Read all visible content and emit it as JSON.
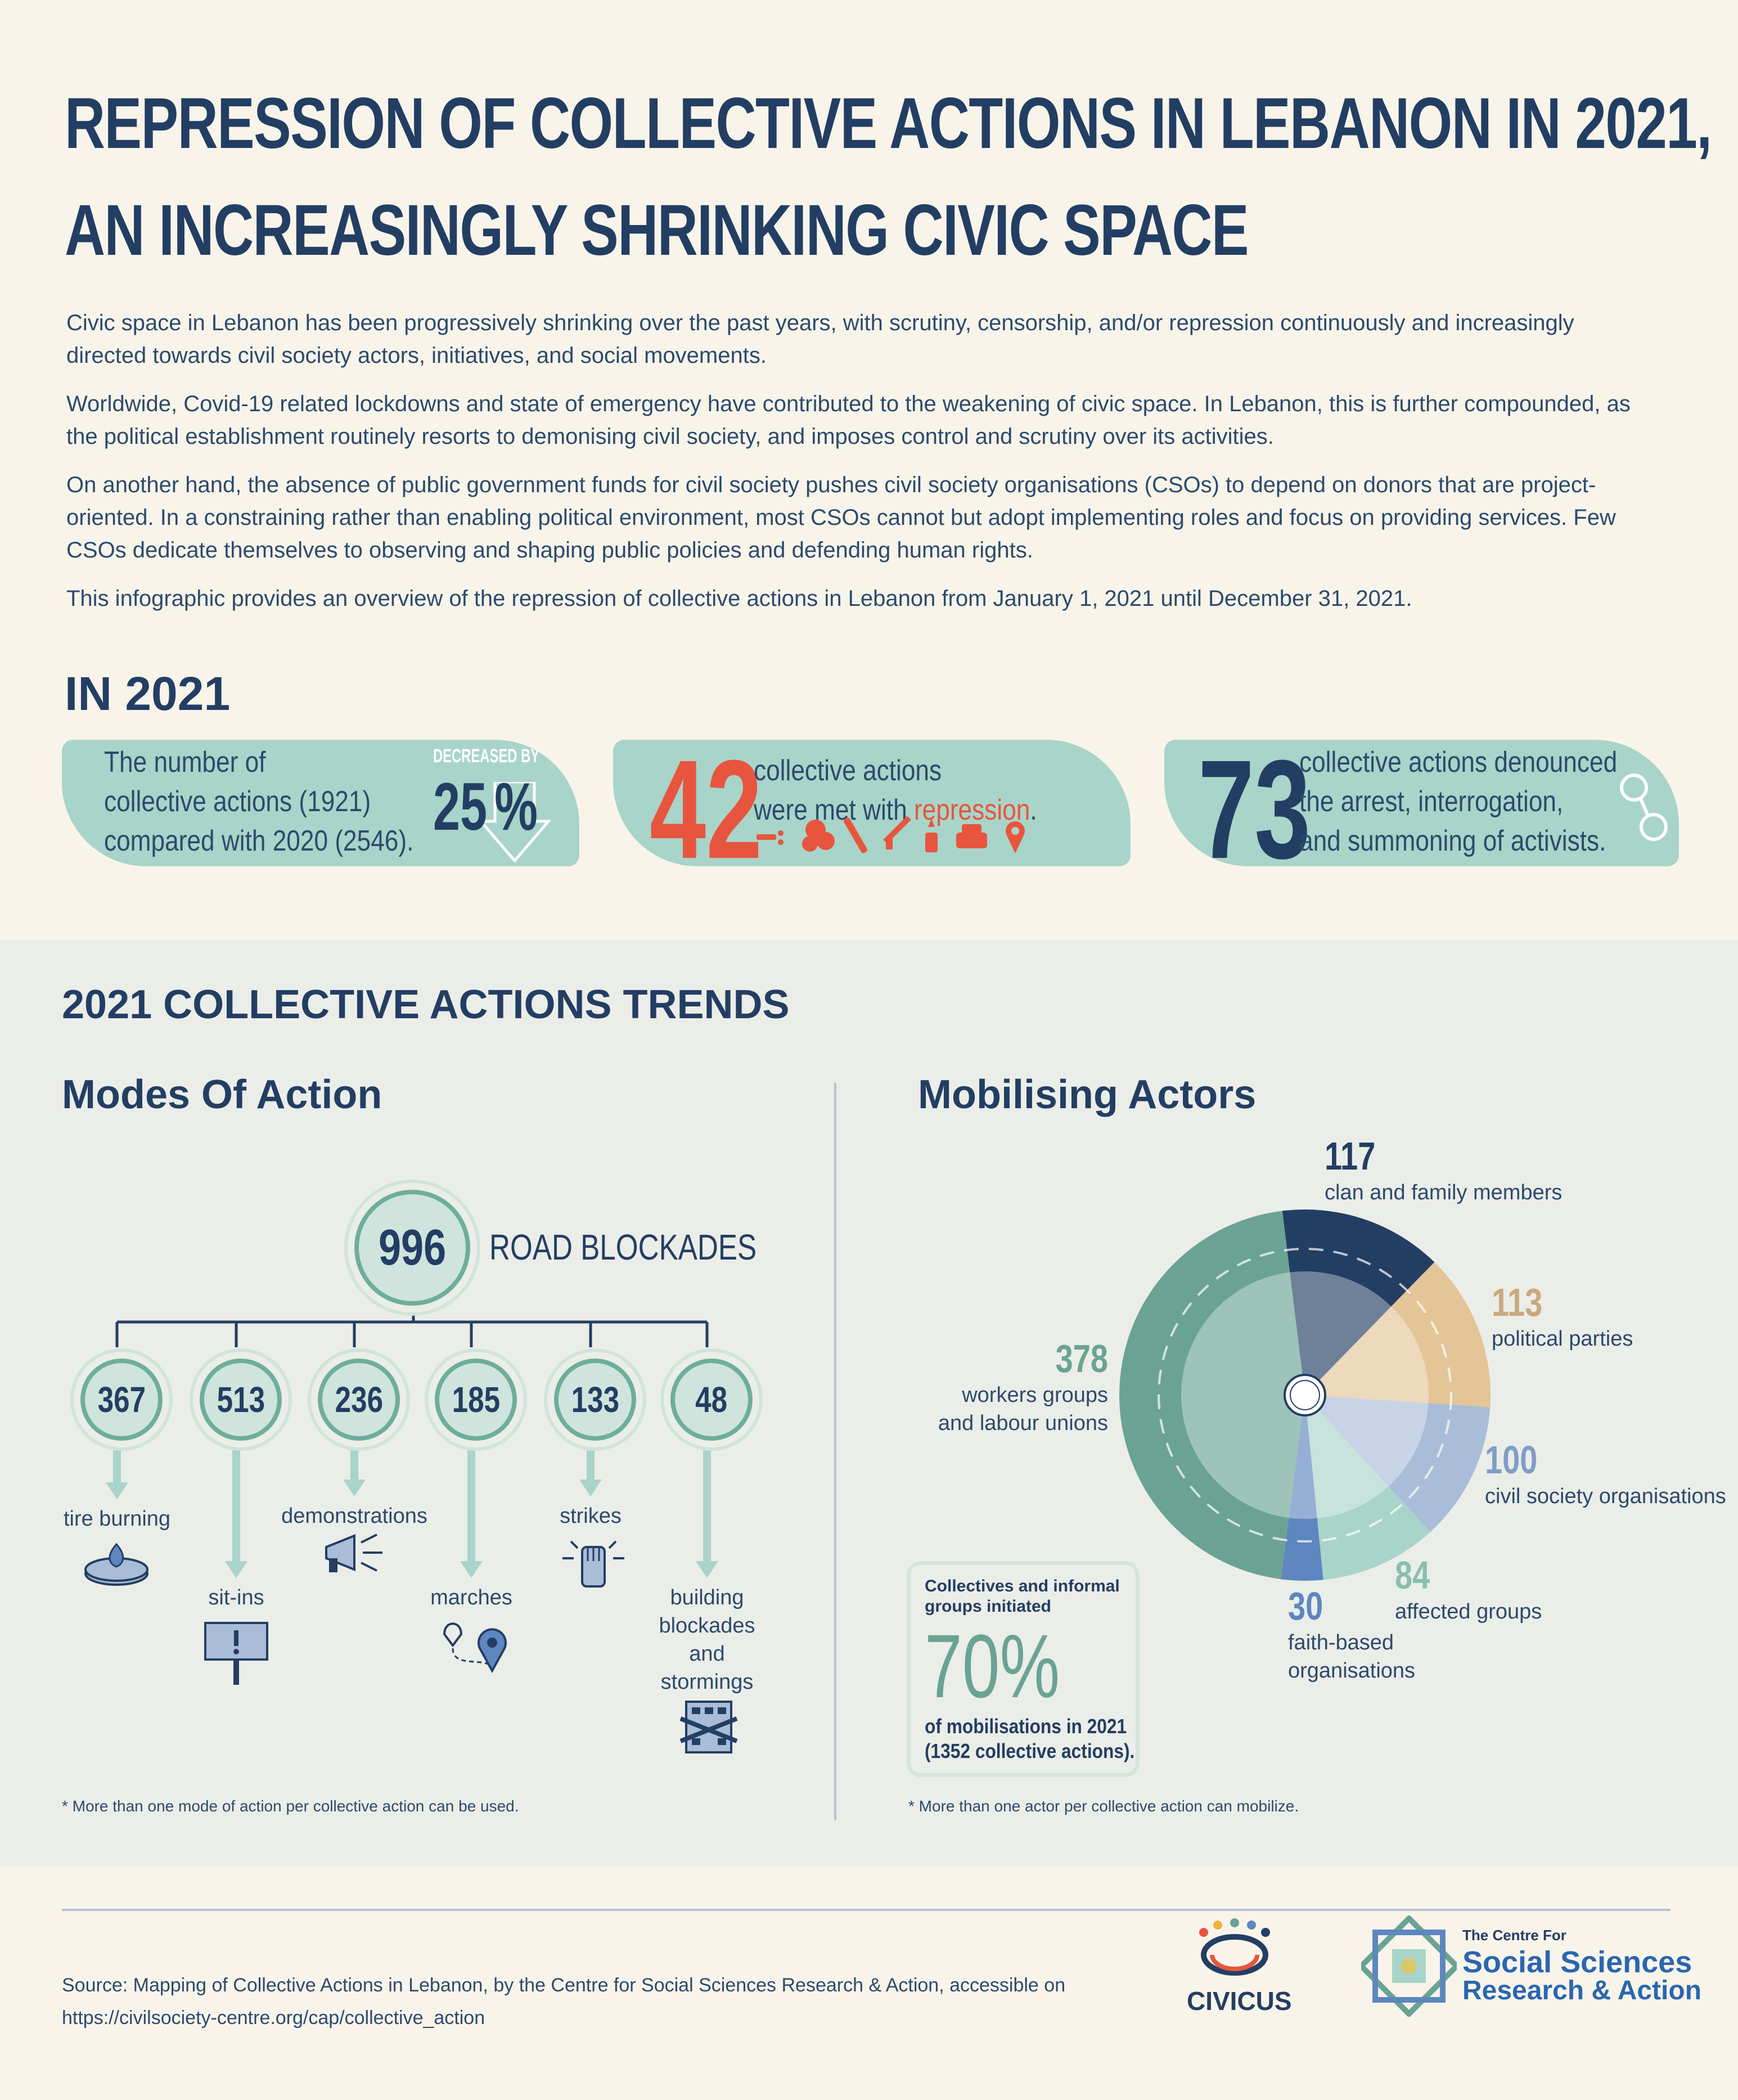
{
  "title": {
    "line1": "REPRESSION OF COLLECTIVE ACTIONS IN LEBANON IN 2021,",
    "line2": "AN INCREASINGLY SHRINKING CIVIC SPACE"
  },
  "intro": [
    "Civic space in Lebanon has been progressively shrinking over the past years, with scrutiny, censorship, and/or repression continuously and increasingly directed towards civil society actors, initiatives, and social movements.",
    "Worldwide, Covid-19 related lockdowns and state of emergency have contributed to the weakening of civic space. In Lebanon, this is further compounded, as the political establishment routinely resorts to demonising civil society, and imposes control and scrutiny over its activities.",
    "On another hand, the absence of public government funds for civil society pushes civil society organisations (CSOs) to depend on donors that are project-oriented. In a constraining rather than enabling political environment, most CSOs cannot but adopt implementing roles and focus on providing services. Few CSOs dedicate themselves to observing and shaping public policies and defending human rights.",
    "This infographic provides an overview of the repression of collective actions in Lebanon from January 1, 2021 until December 31, 2021."
  ],
  "in2021": {
    "heading": "IN 2021",
    "card1": {
      "line1": "The number of",
      "line2": "collective actions (1921)",
      "line3": "compared with 2020 (2546).",
      "decreased_label": "DECREASED BY",
      "percent": "25",
      "percent_sign": "%"
    },
    "card2": {
      "number": "42",
      "line1": "collective actions",
      "line2_prefix": "were met with ",
      "line2_highlight": "repression",
      "line2_suffix": "."
    },
    "card3": {
      "number": "73",
      "line1": "collective actions denounced",
      "line2": "the arrest, interrogation,",
      "line3": "and summoning of activists."
    }
  },
  "trends": {
    "heading": "2021 COLLECTIVE ACTIONS TRENDS",
    "modes": {
      "heading": "Modes Of Action",
      "top": {
        "value": "996",
        "label": "ROAD BLOCKADES"
      },
      "items": [
        {
          "value": "367",
          "label": "tire burning"
        },
        {
          "value": "513",
          "label": "sit-ins"
        },
        {
          "value": "236",
          "label": "demonstrations"
        },
        {
          "value": "185",
          "label": "marches"
        },
        {
          "value": "133",
          "label": "strikes"
        },
        {
          "value": "48",
          "label": "building blockades and stormings"
        }
      ],
      "footnote": "* More than one mode of action per collective action can be used."
    },
    "actors": {
      "heading": "Mobilising Actors",
      "slices": [
        {
          "value": 117,
          "label": "clan and family members",
          "color": "#233e63"
        },
        {
          "value": 113,
          "label": "political parties",
          "color": "#e3c597"
        },
        {
          "value": 100,
          "label": "civil society organisations",
          "color": "#a9bdd8"
        },
        {
          "value": 84,
          "label": "affected groups",
          "color": "#a9d4c9"
        },
        {
          "value": 30,
          "label": "faith-based organisations",
          "color": "#5e86bf"
        },
        {
          "value": 378,
          "label": "workers groups and labour unions",
          "color": "#6aa394"
        }
      ],
      "callout": {
        "line1": "Collectives and informal",
        "line2": "groups initiated",
        "percent": "70%",
        "line3": "of mobilisations in 2021",
        "line4": "(1352 collective actions)."
      },
      "footnote": "* More than one actor per collective action can mobilize."
    }
  },
  "source": {
    "line1": "Source: Mapping of Collective Actions in Lebanon, by the Centre for Social Sciences Research & Action, accessible on",
    "line2": "https://civilsociety-centre.org/cap/collective_action"
  },
  "logos": {
    "civicus": "CIVICUS",
    "centre_line1": "The Centre For",
    "centre_line2": "Social Sciences",
    "centre_line3": "Research & Action"
  },
  "colors": {
    "navy": "#233e63",
    "teal": "#a9d4c9",
    "red": "#e8553e",
    "dark_teal": "#6aa394"
  }
}
